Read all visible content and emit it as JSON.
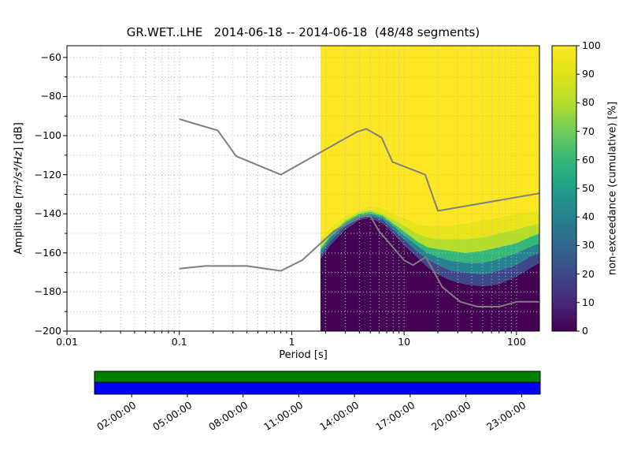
{
  "title": "GR.WET..LHE   2014-06-18 -- 2014-06-18  (48/48 segments)",
  "plot": {
    "xlabel": "Period [s]",
    "ylabel_pre": "Amplitude [",
    "ylabel_math": "m²/s⁴/Hz",
    "ylabel_post": "] [dB]",
    "x_tick_labels": [
      "0.01",
      "0.1",
      "1",
      "10",
      "100"
    ],
    "x_tick_values": [
      0.01,
      0.1,
      1,
      10,
      100
    ],
    "y_tick_labels": [
      "−60",
      "−80",
      "−100",
      "−120",
      "−140",
      "−160",
      "−180",
      "−200"
    ],
    "y_tick_values": [
      -60,
      -80,
      -100,
      -120,
      -140,
      -160,
      -180,
      -200
    ]
  },
  "colorbar": {
    "label": "non-exceedance (cumulative) [%]",
    "tick_values": [
      0,
      10,
      20,
      30,
      40,
      50,
      60,
      70,
      80,
      90,
      100
    ],
    "stops": [
      [
        0,
        "#440154"
      ],
      [
        0.1,
        "#482878"
      ],
      [
        0.2,
        "#3e4989"
      ],
      [
        0.3,
        "#31688e"
      ],
      [
        0.4,
        "#26828e"
      ],
      [
        0.5,
        "#1f9e89"
      ],
      [
        0.6,
        "#35b779"
      ],
      [
        0.7,
        "#6dcd59"
      ],
      [
        0.8,
        "#b4de2c"
      ],
      [
        0.9,
        "#dfe318"
      ],
      [
        1,
        "#fde725"
      ]
    ]
  },
  "coverage": {
    "green": "#008000",
    "blue": "#0000ff",
    "time_tick_labels": [
      "02:00:00",
      "05:00:00",
      "08:00:00",
      "11:00:00",
      "14:00:00",
      "17:00:00",
      "20:00:00",
      "23:00:00"
    ],
    "time_tick_hours": [
      2,
      5,
      8,
      11,
      14,
      17,
      20,
      23
    ]
  },
  "colors": {
    "noise_model": "#7f7f7f",
    "grid": "#b8b8b8",
    "band_colors": [
      "#440154",
      "#3e4989",
      "#26828e",
      "#35b779",
      "#b4de2c",
      "#eae51a",
      "#fde725"
    ]
  },
  "chart_data": {
    "type": "heatmap",
    "title": "GR.WET..LHE   2014-06-18 -- 2014-06-18  (48/48 segments)",
    "xlabel": "Period [s]",
    "ylabel": "Amplitude [m²/s⁴/Hz] [dB]",
    "x_scale": "log",
    "xlim": [
      0.01,
      160
    ],
    "ylim": [
      -200,
      -54
    ],
    "grid": "dotted",
    "colormap": "viridis",
    "colorbar_label": "non-exceedance (cumulative) [%]",
    "colorbar_range": [
      0,
      100
    ],
    "legend_position": "none",
    "ppsd": {
      "description": "cumulative non-exceedance PPSD: amplitude (dB) at given cumulative percentile vs period (s); colored region spans periods 1.8-160 s",
      "periods_s": [
        1.8,
        2.2,
        3.0,
        4.0,
        5.0,
        6.5,
        8.0,
        10,
        13,
        16,
        20,
        26,
        35,
        50,
        70,
        100,
        130,
        160
      ],
      "percentile_order": [
        "p10",
        "p30",
        "p50",
        "p70",
        "p90",
        "p100"
      ],
      "percentile_curves": {
        "p10": [
          -163,
          -156,
          -148,
          -143,
          -142,
          -145,
          -150,
          -156,
          -162,
          -167,
          -171,
          -174,
          -176,
          -177,
          -176,
          -172,
          -168,
          -165
        ],
        "p30": [
          -161,
          -154,
          -146,
          -142,
          -141,
          -143,
          -148,
          -153,
          -159,
          -163,
          -166,
          -169,
          -170,
          -171,
          -169,
          -166,
          -162,
          -160
        ],
        "p50": [
          -159,
          -152,
          -145,
          -141,
          -140,
          -142,
          -146,
          -151,
          -156,
          -160,
          -162,
          -164,
          -165,
          -165,
          -163,
          -160,
          -157,
          -155
        ],
        "p70": [
          -158,
          -151,
          -144,
          -140,
          -139,
          -141,
          -145,
          -149,
          -154,
          -157,
          -158,
          -159,
          -160,
          -159,
          -157,
          -155,
          -152,
          -150
        ],
        "p90": [
          -156,
          -150,
          -143,
          -139,
          -138,
          -140,
          -143,
          -146,
          -150,
          -152,
          -153,
          -153,
          -153,
          -152,
          -150,
          -148,
          -146,
          -145
        ],
        "p100": [
          -153,
          -147,
          -141,
          -138,
          -136,
          -137,
          -140,
          -142,
          -145,
          -146,
          -146,
          -146,
          -145,
          -143,
          -142,
          -140,
          -139,
          -138
        ]
      }
    },
    "noise_models": {
      "nhnm": [
        [
          0.1,
          -91.5
        ],
        [
          0.22,
          -97.4
        ],
        [
          0.32,
          -110.5
        ],
        [
          0.8,
          -120.0
        ],
        [
          3.8,
          -98.1
        ],
        [
          4.6,
          -96.5
        ],
        [
          6.3,
          -101.0
        ],
        [
          7.9,
          -113.5
        ],
        [
          15.4,
          -120.0
        ],
        [
          20.0,
          -138.5
        ],
        [
          160.0,
          -129.5
        ]
      ],
      "nlnm": [
        [
          0.1,
          -168.0
        ],
        [
          0.17,
          -166.7
        ],
        [
          0.4,
          -166.7
        ],
        [
          0.8,
          -169.2
        ],
        [
          1.24,
          -163.7
        ],
        [
          2.4,
          -148.6
        ],
        [
          4.3,
          -141.1
        ],
        [
          5.0,
          -141.1
        ],
        [
          6.0,
          -149.0
        ],
        [
          10.0,
          -163.8
        ],
        [
          12.0,
          -166.2
        ],
        [
          15.6,
          -162.1
        ],
        [
          21.9,
          -177.5
        ],
        [
          31.6,
          -185.0
        ],
        [
          45.0,
          -187.5
        ],
        [
          70.0,
          -187.5
        ],
        [
          101.0,
          -185.0
        ],
        [
          154.0,
          -185.0
        ],
        [
          160.0,
          -185.3
        ]
      ]
    },
    "coverage_time_ticks": [
      "02:00:00",
      "05:00:00",
      "08:00:00",
      "11:00:00",
      "14:00:00",
      "17:00:00",
      "20:00:00",
      "23:00:00"
    ]
  }
}
